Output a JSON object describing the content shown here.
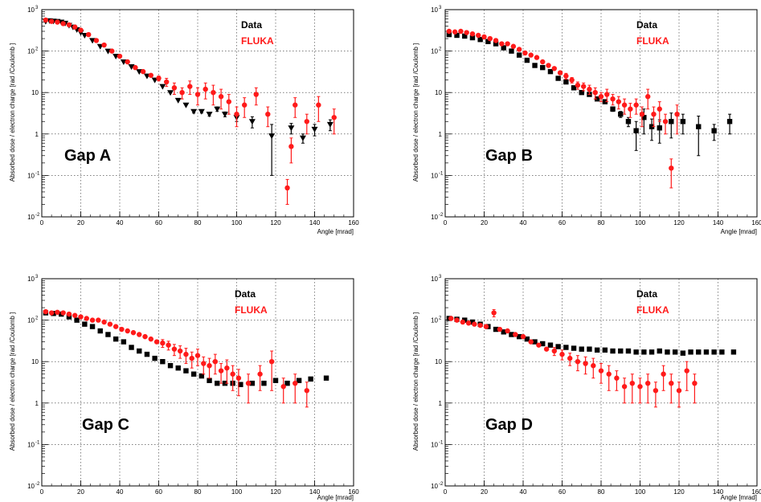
{
  "colors": {
    "data": "#000000",
    "fluka": "#ff1a1a",
    "background": "#ffffff"
  },
  "chart_data": [
    {
      "type": "scatter",
      "title": "",
      "annotation": "Gap A",
      "xlabel": "Angle [mrad]",
      "ylabel": "Absorbed dose / electron charge [rad /Coulomb ]",
      "xlim": [
        0,
        160
      ],
      "ylim": [
        0.01,
        1000
      ],
      "yscale": "log",
      "x_ticks": [
        "0",
        "20",
        "40",
        "60",
        "80",
        "100",
        "120",
        "140",
        "160"
      ],
      "y_ticks": [
        {
          "base": "10",
          "exp": "-2"
        },
        {
          "base": "10",
          "exp": "-1"
        },
        {
          "base": "1",
          "exp": ""
        },
        {
          "base": "10",
          "exp": ""
        },
        {
          "base": "10",
          "exp": "2"
        },
        {
          "base": "10",
          "exp": "3"
        }
      ],
      "grid": true,
      "legend_position": "top-right",
      "series": [
        {
          "name": "Data",
          "marker": "triangle-down",
          "x": [
            2,
            4,
            6,
            8,
            10,
            12,
            14,
            16,
            18,
            20,
            22,
            26,
            30,
            34,
            38,
            42,
            46,
            50,
            54,
            58,
            62,
            66,
            70,
            74,
            78,
            82,
            86,
            90,
            94,
            100,
            108,
            118,
            128,
            134,
            140,
            148
          ],
          "y": [
            520,
            540,
            530,
            520,
            500,
            470,
            420,
            380,
            330,
            280,
            240,
            180,
            130,
            100,
            75,
            55,
            42,
            32,
            25,
            20,
            14,
            10,
            6.5,
            5,
            3.5,
            3.5,
            3,
            4,
            3,
            2.5,
            2,
            0.9,
            1.4,
            0.8,
            1.3,
            1.7
          ],
          "yerr": [
            0,
            0,
            0,
            0,
            0,
            0,
            0,
            0,
            0,
            0,
            0,
            0,
            0,
            0,
            0,
            0,
            0,
            0,
            0,
            0,
            0,
            0,
            0,
            0,
            0.3,
            0.3,
            0.3,
            0.5,
            0.4,
            0.5,
            0.6,
            0.8,
            0.4,
            0.2,
            0.4,
            0.5
          ]
        },
        {
          "name": "FLUKA",
          "marker": "circle",
          "x": [
            2,
            5,
            8,
            11,
            14,
            17,
            20,
            24,
            28,
            32,
            36,
            40,
            44,
            48,
            52,
            56,
            60,
            64,
            68,
            72,
            76,
            80,
            84,
            88,
            92,
            96,
            100,
            104,
            110,
            116,
            126,
            128,
            130,
            136,
            142,
            150
          ],
          "y": [
            560,
            520,
            500,
            460,
            430,
            380,
            320,
            250,
            180,
            140,
            100,
            75,
            55,
            40,
            32,
            26,
            22,
            18,
            13,
            10,
            14,
            9,
            12,
            10,
            8,
            6,
            3,
            5,
            9,
            3,
            0.05,
            0.5,
            5,
            2,
            5,
            2.5
          ],
          "yerr": [
            0,
            0,
            0,
            0,
            0,
            0,
            0,
            0,
            0,
            0,
            0,
            0,
            0,
            0,
            0,
            0,
            3,
            4,
            4,
            3,
            5,
            4,
            5,
            5,
            4,
            3,
            1.5,
            2.5,
            4,
            1.5,
            0.03,
            0.3,
            2.5,
            1,
            3,
            1.5
          ]
        }
      ]
    },
    {
      "type": "scatter",
      "title": "",
      "annotation": "Gap B",
      "xlabel": "Angle [mrad]",
      "ylabel": "Absorbed dose / electron charge [rad /Coulomb ]",
      "xlim": [
        0,
        160
      ],
      "ylim": [
        0.01,
        1000
      ],
      "yscale": "log",
      "x_ticks": [
        "0",
        "20",
        "40",
        "60",
        "80",
        "100",
        "120",
        "140",
        "160"
      ],
      "y_ticks": [
        {
          "base": "10",
          "exp": "-2"
        },
        {
          "base": "10",
          "exp": "-1"
        },
        {
          "base": "1",
          "exp": ""
        },
        {
          "base": "10",
          "exp": ""
        },
        {
          "base": "10",
          "exp": "2"
        },
        {
          "base": "10",
          "exp": "3"
        }
      ],
      "grid": true,
      "legend_position": "top-right",
      "series": [
        {
          "name": "Data",
          "marker": "square",
          "x": [
            2,
            6,
            10,
            14,
            18,
            22,
            26,
            30,
            34,
            38,
            42,
            46,
            50,
            54,
            58,
            62,
            66,
            70,
            74,
            78,
            82,
            86,
            90,
            94,
            98,
            102,
            106,
            110,
            116,
            122,
            130,
            138,
            146
          ],
          "y": [
            250,
            240,
            230,
            210,
            190,
            170,
            150,
            120,
            100,
            80,
            60,
            45,
            40,
            32,
            22,
            18,
            13,
            10,
            9,
            7,
            6,
            4,
            3,
            2,
            1.2,
            2.5,
            1.5,
            1.4,
            2,
            2,
            1.5,
            1.2,
            2
          ],
          "yerr": [
            0,
            0,
            0,
            0,
            0,
            0,
            0,
            0,
            0,
            0,
            0,
            0,
            0,
            0,
            0,
            0,
            0,
            0,
            0,
            0,
            0,
            0.5,
            0.5,
            0.5,
            0.8,
            1.5,
            0.8,
            0.8,
            1.2,
            1,
            1.2,
            0.5,
            1
          ]
        },
        {
          "name": "FLUKA",
          "marker": "circle",
          "x": [
            2,
            5,
            8,
            11,
            14,
            17,
            20,
            23,
            26,
            29,
            32,
            35,
            38,
            41,
            44,
            47,
            50,
            53,
            56,
            59,
            62,
            65,
            68,
            71,
            74,
            77,
            80,
            83,
            86,
            89,
            92,
            95,
            98,
            101,
            104,
            107,
            110,
            113,
            116,
            119
          ],
          "y": [
            300,
            290,
            300,
            280,
            260,
            240,
            220,
            200,
            180,
            150,
            150,
            130,
            110,
            90,
            80,
            70,
            55,
            45,
            38,
            30,
            25,
            20,
            15,
            14,
            12,
            10,
            8,
            9,
            7,
            6,
            5,
            4,
            5,
            3,
            8,
            3,
            4,
            2,
            0.15,
            3
          ],
          "yerr": [
            0,
            0,
            0,
            0,
            0,
            0,
            0,
            0,
            0,
            0,
            0,
            0,
            0,
            0,
            0,
            0,
            0,
            0,
            0,
            0,
            4,
            3,
            3,
            3,
            3,
            3,
            2,
            3,
            2,
            2,
            2,
            1.5,
            2,
            1.5,
            4,
            1.5,
            2,
            1,
            0.1,
            2
          ]
        }
      ]
    },
    {
      "type": "scatter",
      "title": "",
      "annotation": "Gap C",
      "xlabel": "Angle [mrad]",
      "ylabel": "Absorbed dose / electron charge [rad /Coulomb ]",
      "xlim": [
        0,
        160
      ],
      "ylim": [
        0.01,
        1000
      ],
      "yscale": "log",
      "x_ticks": [
        "0",
        "20",
        "40",
        "60",
        "80",
        "100",
        "120",
        "140",
        "160"
      ],
      "y_ticks": [
        {
          "base": "10",
          "exp": "-2"
        },
        {
          "base": "10",
          "exp": "-1"
        },
        {
          "base": "1",
          "exp": ""
        },
        {
          "base": "10",
          "exp": ""
        },
        {
          "base": "10",
          "exp": "2"
        },
        {
          "base": "10",
          "exp": "3"
        }
      ],
      "grid": true,
      "legend_position": "top-right",
      "series": [
        {
          "name": "Data",
          "marker": "square",
          "x": [
            2,
            6,
            10,
            14,
            18,
            22,
            26,
            30,
            34,
            38,
            42,
            46,
            50,
            54,
            58,
            62,
            66,
            70,
            74,
            78,
            82,
            86,
            90,
            94,
            98,
            102,
            108,
            114,
            120,
            126,
            132,
            138,
            146
          ],
          "y": [
            150,
            145,
            140,
            120,
            100,
            80,
            70,
            55,
            45,
            35,
            30,
            22,
            18,
            15,
            12,
            10,
            8,
            7,
            6,
            5,
            4.5,
            3.5,
            3,
            3,
            3,
            2.8,
            3,
            3,
            3.5,
            3,
            3.5,
            3.8,
            4
          ],
          "yerr": [
            0,
            0,
            0,
            0,
            0,
            0,
            0,
            0,
            0,
            0,
            0,
            0,
            0,
            0,
            0,
            0,
            0,
            0,
            0,
            0,
            0,
            0,
            0,
            0,
            0,
            0,
            0,
            0,
            0,
            0,
            0,
            0,
            0
          ]
        },
        {
          "name": "FLUKA",
          "marker": "circle",
          "x": [
            2,
            5,
            8,
            11,
            14,
            17,
            20,
            23,
            26,
            29,
            32,
            35,
            38,
            41,
            44,
            47,
            50,
            53,
            56,
            59,
            62,
            65,
            68,
            71,
            74,
            77,
            80,
            83,
            86,
            89,
            92,
            95,
            98,
            101,
            106,
            112,
            118,
            124,
            130,
            136
          ],
          "y": [
            160,
            150,
            155,
            150,
            140,
            130,
            120,
            110,
            100,
            100,
            90,
            80,
            70,
            60,
            55,
            50,
            45,
            40,
            35,
            30,
            28,
            25,
            20,
            18,
            15,
            12,
            14,
            9,
            8,
            10,
            6,
            7,
            5,
            4,
            3,
            5,
            10,
            2.5,
            3,
            2
          ],
          "yerr": [
            0,
            0,
            0,
            0,
            0,
            0,
            0,
            0,
            0,
            0,
            0,
            0,
            0,
            0,
            0,
            0,
            0,
            0,
            0,
            0,
            6,
            6,
            6,
            6,
            6,
            5,
            6,
            4,
            4,
            5,
            3,
            4,
            3,
            2.5,
            2,
            3,
            8,
            1.5,
            2,
            1.2
          ]
        }
      ]
    },
    {
      "type": "scatter",
      "title": "",
      "annotation": "Gap D",
      "xlabel": "Angle [mrad]",
      "ylabel": "Absorbed dose / electron charge [rad /Coulomb ]",
      "xlim": [
        0,
        160
      ],
      "ylim": [
        0.01,
        1000
      ],
      "yscale": "log",
      "x_ticks": [
        "0",
        "20",
        "40",
        "60",
        "80",
        "100",
        "120",
        "140",
        "160"
      ],
      "y_ticks": [
        {
          "base": "10",
          "exp": "-2"
        },
        {
          "base": "10",
          "exp": "-1"
        },
        {
          "base": "1",
          "exp": ""
        },
        {
          "base": "10",
          "exp": ""
        },
        {
          "base": "10",
          "exp": "2"
        },
        {
          "base": "10",
          "exp": "3"
        }
      ],
      "grid": true,
      "legend_position": "top-right",
      "series": [
        {
          "name": "Data",
          "marker": "square",
          "x": [
            2,
            6,
            10,
            14,
            18,
            22,
            26,
            30,
            34,
            38,
            42,
            46,
            50,
            54,
            58,
            62,
            66,
            70,
            74,
            78,
            82,
            86,
            90,
            94,
            98,
            102,
            106,
            110,
            114,
            118,
            122,
            126,
            130,
            134,
            138,
            142,
            148
          ],
          "y": [
            110,
            105,
            100,
            90,
            80,
            70,
            60,
            52,
            45,
            40,
            35,
            30,
            27,
            25,
            23,
            22,
            21,
            20,
            20,
            19,
            19,
            18,
            18,
            18,
            17,
            17,
            17,
            18,
            17,
            17,
            16,
            17,
            17,
            17,
            17,
            17,
            17
          ],
          "yerr": [
            0,
            0,
            0,
            0,
            0,
            0,
            0,
            0,
            0,
            0,
            0,
            0,
            0,
            0,
            0,
            0,
            0,
            0,
            0,
            0,
            0,
            0,
            0,
            0,
            0,
            0,
            0,
            0,
            0,
            0,
            0,
            0,
            0,
            0,
            0,
            0,
            0
          ]
        },
        {
          "name": "FLUKA",
          "marker": "circle",
          "x": [
            3,
            6,
            9,
            12,
            15,
            18,
            21,
            25,
            28,
            32,
            36,
            40,
            44,
            48,
            52,
            56,
            60,
            64,
            68,
            72,
            76,
            80,
            84,
            88,
            92,
            96,
            100,
            104,
            108,
            112,
            116,
            120,
            124,
            128
          ],
          "y": [
            110,
            100,
            90,
            85,
            80,
            75,
            70,
            150,
            60,
            55,
            45,
            40,
            30,
            25,
            20,
            18,
            15,
            12,
            10,
            9,
            8,
            6,
            5,
            4,
            2.5,
            3,
            2.5,
            3,
            2,
            5,
            3,
            2,
            6,
            3
          ],
          "yerr": [
            0,
            0,
            0,
            0,
            0,
            0,
            0,
            30,
            0,
            0,
            0,
            0,
            0,
            0,
            0,
            4,
            4,
            4,
            4,
            4,
            4,
            3,
            3,
            2,
            1.5,
            2,
            1.5,
            2,
            1.2,
            3,
            2,
            1.2,
            4,
            2
          ]
        }
      ]
    }
  ]
}
